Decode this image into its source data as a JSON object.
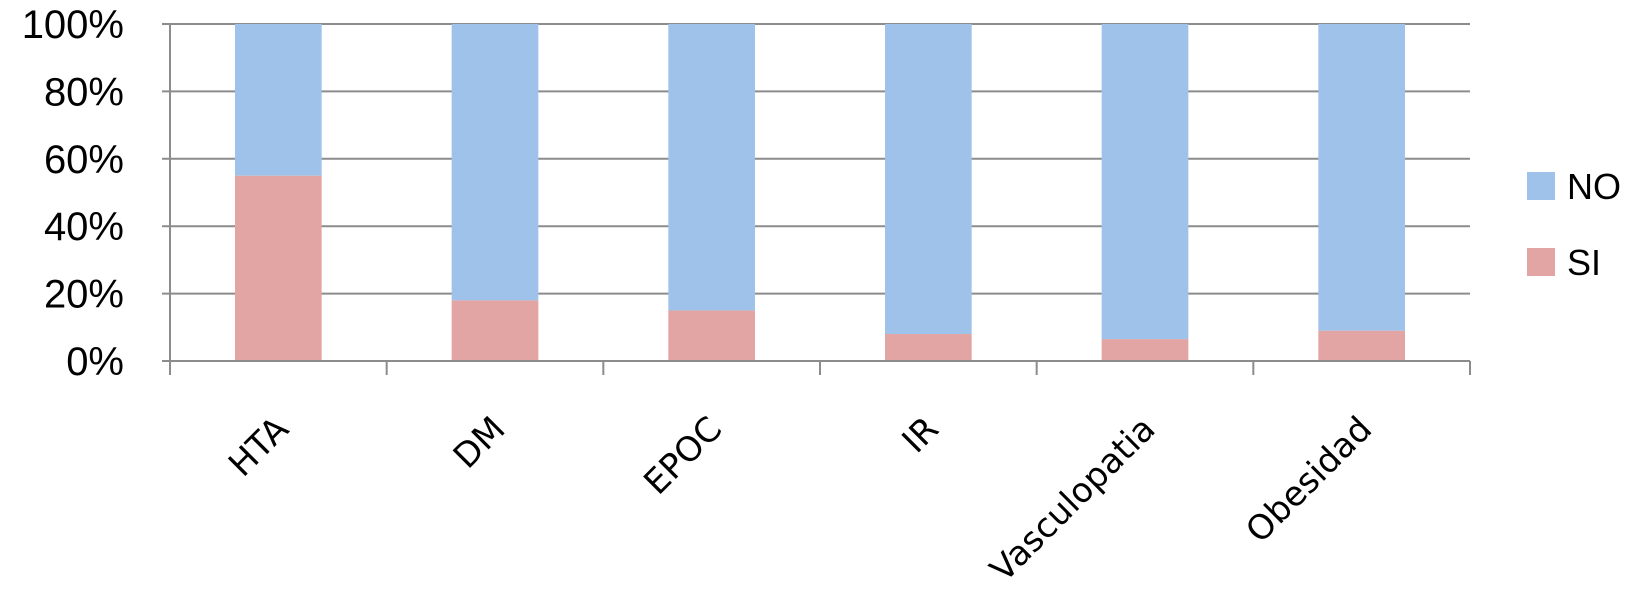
{
  "chart_data": {
    "type": "bar",
    "stacked": true,
    "normalized_percent": true,
    "categories": [
      "HTA",
      "DM",
      "EPOC",
      "IR",
      "Vasculopatia",
      "Obesidad"
    ],
    "series": [
      {
        "name": "SI",
        "color": "#e3a5a3",
        "values": [
          55,
          18,
          15,
          8,
          6.5,
          9
        ]
      },
      {
        "name": "NO",
        "color": "#9fc2ea",
        "values": [
          45,
          82,
          85,
          92,
          93.5,
          91
        ]
      }
    ],
    "y_ticks": [
      "0%",
      "20%",
      "40%",
      "60%",
      "80%",
      "100%"
    ],
    "ylim": [
      0,
      100
    ],
    "grid": true,
    "legend_position": "right",
    "legend": [
      "NO",
      "SI"
    ],
    "title": "",
    "xlabel": "",
    "ylabel": ""
  }
}
